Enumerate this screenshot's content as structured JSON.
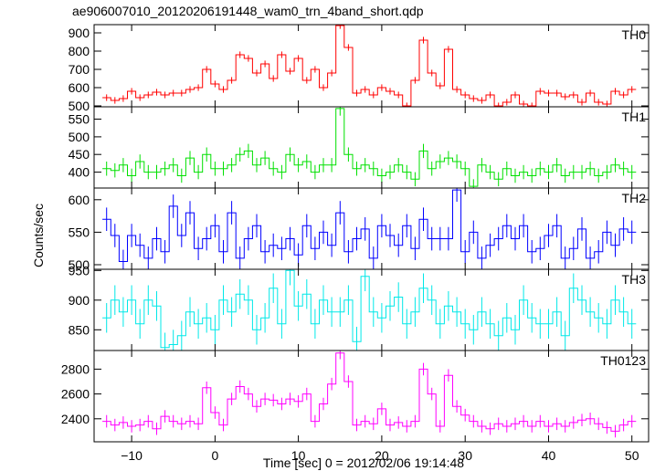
{
  "chart_data": {
    "type": "line",
    "title": "ae906007010_20120206191448_wam0_trn_4band_short.qdp",
    "xlabel": "Time [sec] 0 = 2012/02/06 19:14:48",
    "ylabel": "Counts/sec",
    "xlim": [
      -14.5,
      52
    ],
    "x_ticks": [
      -10,
      0,
      10,
      20,
      30,
      40,
      50
    ],
    "x_tick_labels": [
      "−10",
      "0",
      "10",
      "20",
      "30",
      "40",
      "50"
    ],
    "bin_width": 1.0,
    "x": [
      -13,
      -12,
      -11,
      -10,
      -9,
      -8,
      -7,
      -6,
      -5,
      -4,
      -3,
      -2,
      -1,
      0,
      1,
      2,
      3,
      4,
      5,
      6,
      7,
      8,
      9,
      10,
      11,
      12,
      13,
      14,
      15,
      16,
      17,
      18,
      19,
      20,
      21,
      22,
      23,
      24,
      25,
      26,
      27,
      28,
      29,
      30,
      31,
      32,
      33,
      34,
      35,
      36,
      37,
      38,
      39,
      40,
      41,
      42,
      43,
      44,
      45,
      46,
      47,
      48,
      49,
      50
    ],
    "panels": [
      {
        "name": "TH0",
        "color": "#ff0000",
        "ylim": [
          495,
          945
        ],
        "y_ticks": [
          500,
          600,
          700,
          800,
          900
        ],
        "err": 18,
        "values": [
          545,
          530,
          540,
          580,
          545,
          560,
          575,
          560,
          570,
          570,
          590,
          600,
          700,
          620,
          590,
          640,
          780,
          760,
          680,
          730,
          650,
          780,
          690,
          760,
          640,
          700,
          600,
          680,
          940,
          820,
          570,
          590,
          560,
          600,
          580,
          560,
          500,
          640,
          860,
          680,
          610,
          810,
          590,
          560,
          540,
          530,
          560,
          500,
          520,
          560,
          510,
          500,
          580,
          570,
          570,
          550,
          560,
          520,
          570,
          520,
          510,
          580,
          560,
          590
        ]
      },
      {
        "name": "TH1",
        "color": "#00e000",
        "ylim": [
          355,
          585
        ],
        "y_ticks": [
          400,
          450,
          500,
          550
        ],
        "err": 20,
        "values": [
          410,
          405,
          420,
          390,
          430,
          400,
          400,
          410,
          420,
          390,
          440,
          400,
          450,
          410,
          410,
          420,
          450,
          460,
          420,
          440,
          410,
          400,
          450,
          420,
          430,
          400,
          420,
          420,
          580,
          450,
          410,
          420,
          410,
          390,
          400,
          420,
          400,
          380,
          460,
          410,
          430,
          440,
          430,
          410,
          360,
          420,
          400,
          380,
          410,
          390,
          400,
          390,
          410,
          400,
          420,
          390,
          400,
          400,
          410,
          390,
          400,
          420,
          410,
          400
        ]
      },
      {
        "name": "TH2",
        "color": "#0000ff",
        "ylim": [
          493,
          618
        ],
        "y_ticks": [
          500,
          550,
          600
        ],
        "err": 18,
        "values": [
          570,
          545,
          505,
          545,
          530,
          510,
          540,
          520,
          590,
          545,
          580,
          525,
          540,
          560,
          520,
          580,
          510,
          540,
          560,
          520,
          530,
          525,
          540,
          515,
          560,
          525,
          550,
          530,
          580,
          520,
          540,
          555,
          510,
          560,
          545,
          530,
          560,
          525,
          570,
          540,
          540,
          540,
          615,
          520,
          550,
          510,
          530,
          540,
          560,
          540,
          560,
          520,
          525,
          545,
          560,
          510,
          525,
          555,
          510,
          520,
          550,
          530,
          555,
          550
        ]
      },
      {
        "name": "TH3",
        "color": "#00e8e8",
        "ylim": [
          815,
          952
        ],
        "y_ticks": [
          850,
          900,
          950
        ],
        "err": 25,
        "values": [
          870,
          900,
          880,
          900,
          860,
          900,
          890,
          820,
          825,
          840,
          880,
          860,
          870,
          850,
          900,
          880,
          910,
          900,
          850,
          870,
          920,
          860,
          950,
          890,
          910,
          860,
          900,
          880,
          880,
          900,
          830,
          940,
          880,
          870,
          890,
          905,
          860,
          880,
          920,
          900,
          860,
          890,
          880,
          860,
          850,
          880,
          860,
          840,
          870,
          850,
          900,
          870,
          860,
          860,
          880,
          840,
          920,
          900,
          880,
          870,
          860,
          900,
          880,
          860
        ]
      },
      {
        "name": "TH0123",
        "color": "#ff00ff",
        "ylim": [
          2215,
          2950
        ],
        "y_ticks": [
          2400,
          2600,
          2800
        ],
        "err": 50,
        "values": [
          2380,
          2350,
          2370,
          2340,
          2350,
          2380,
          2320,
          2420,
          2380,
          2360,
          2380,
          2360,
          2650,
          2450,
          2350,
          2560,
          2660,
          2600,
          2500,
          2560,
          2550,
          2520,
          2560,
          2540,
          2600,
          2380,
          2520,
          2680,
          2930,
          2700,
          2350,
          2380,
          2360,
          2480,
          2350,
          2370,
          2340,
          2380,
          2800,
          2600,
          2340,
          2750,
          2500,
          2430,
          2380,
          2340,
          2320,
          2360,
          2340,
          2360,
          2380,
          2340,
          2380,
          2340,
          2360,
          2340,
          2370,
          2390,
          2400,
          2360,
          2330,
          2300,
          2350,
          2380
        ]
      }
    ]
  }
}
